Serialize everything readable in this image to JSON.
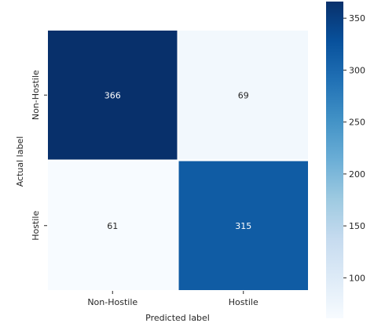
{
  "chart_data": {
    "type": "heatmap",
    "title": "",
    "xlabel": "Predicted label",
    "ylabel": "Actual label",
    "x_categories": [
      "Non-Hostile",
      "Hostile"
    ],
    "y_categories": [
      "Non-Hostile",
      "Hostile"
    ],
    "values": [
      [
        366,
        69
      ],
      [
        61,
        315
      ]
    ],
    "color_scale": {
      "name": "Blues",
      "min": 61,
      "max": 366,
      "low_color": "#f7fbff",
      "high_color": "#08306b"
    },
    "colorbar": {
      "ticks": [
        100,
        150,
        200,
        250,
        300,
        350
      ],
      "tick_labels": [
        "100",
        "150",
        "200",
        "250",
        "300",
        "350"
      ]
    },
    "annotation_colors": {
      "dark": "#262626",
      "light": "#ffffff"
    }
  }
}
